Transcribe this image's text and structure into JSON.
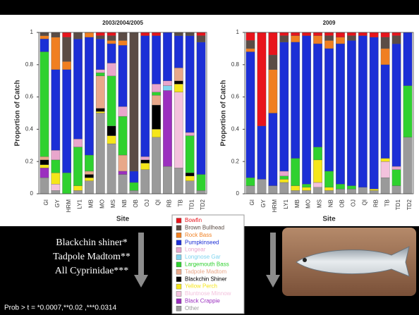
{
  "chart_data": [
    {
      "type": "stacked-bar",
      "title": "2003/2004/2005",
      "xlabel": "Site",
      "ylabel": "Proportion of Catch",
      "categories": [
        "GI",
        "GY",
        "HRM",
        "LY1",
        "MB",
        "MO",
        "MS",
        "NB",
        "OB",
        "OJ",
        "QI",
        "RB",
        "TB",
        "TD1",
        "TD2"
      ],
      "ylim": [
        0,
        1
      ],
      "yticks": [
        0,
        0.2,
        0.4,
        0.6,
        0.8,
        1
      ],
      "series": [
        {
          "name": "Bowfin",
          "color": "#e8141c",
          "values": [
            0,
            0,
            0.03,
            0,
            0,
            0.02,
            0.02,
            0,
            0,
            0.02,
            0.02,
            0,
            0,
            0,
            0.02
          ]
        },
        {
          "name": "Brown Bullhead",
          "color": "#5b4c45",
          "values": [
            0.02,
            0.03,
            0.15,
            0.04,
            0,
            0.02,
            0.03,
            0.05,
            0.86,
            0,
            0,
            0,
            0.02,
            0.02,
            0.04
          ]
        },
        {
          "name": "Rock Bass",
          "color": "#f07f21",
          "values": [
            0.02,
            0.2,
            0.05,
            0,
            0.03,
            0,
            0.02,
            0.03,
            0,
            0,
            0,
            0,
            0,
            0,
            0
          ]
        },
        {
          "name": "Pumpkinseed",
          "color": "#1c2fd6",
          "values": [
            0.08,
            0.5,
            0.64,
            0.62,
            0.73,
            0.19,
            0.12,
            0.38,
            0.07,
            0.75,
            0.3,
            0.3,
            0.2,
            0.6,
            0.82
          ]
        },
        {
          "name": "Longear",
          "color": "#e9a6cc",
          "values": [
            0,
            0.06,
            0,
            0.05,
            0,
            0.02,
            0.08,
            0.06,
            0,
            0.02,
            0.05,
            0.03,
            0,
            0.02,
            0
          ]
        },
        {
          "name": "Longnose Gar",
          "color": "#7fd4ef",
          "values": [
            0,
            0,
            0,
            0,
            0,
            0,
            0,
            0,
            0,
            0,
            0,
            0.03,
            0,
            0,
            0
          ]
        },
        {
          "name": "Largemouth Bass",
          "color": "#2fd12f",
          "values": [
            0.65,
            0.08,
            0.13,
            0.24,
            0.1,
            0.02,
            0.31,
            0.24,
            0.05,
            0,
            0.02,
            0,
            0,
            0.23,
            0.1
          ]
        },
        {
          "name": "Tadpole Madtom",
          "color": "#e8a88a",
          "values": [
            0.02,
            0,
            0,
            0,
            0.02,
            0.2,
            0,
            0.1,
            0,
            0,
            0.06,
            0,
            0.08,
            0,
            0
          ]
        },
        {
          "name": "Blackchin Shiner",
          "color": "#000000",
          "values": [
            0.03,
            0,
            0,
            0,
            0.02,
            0.02,
            0.06,
            0,
            0,
            0.02,
            0.15,
            0,
            0.02,
            0.02,
            0
          ]
        },
        {
          "name": "Yellow Perch",
          "color": "#f5e61a",
          "values": [
            0.02,
            0.07,
            0,
            0.03,
            0.02,
            0.01,
            0.05,
            0,
            0,
            0.04,
            0.05,
            0,
            0.05,
            0.03,
            0
          ]
        },
        {
          "name": "Bluntnose Minnow",
          "color": "#f3c2dd",
          "values": [
            0,
            0.04,
            0,
            0,
            0,
            0,
            0,
            0,
            0,
            0,
            0,
            0,
            0.47,
            0,
            0
          ]
        },
        {
          "name": "Black Crappie",
          "color": "#9b2fbf",
          "values": [
            0.06,
            0,
            0,
            0,
            0,
            0,
            0,
            0.02,
            0,
            0,
            0,
            0.47,
            0,
            0,
            0
          ]
        },
        {
          "name": "Other",
          "color": "#9a9a9a",
          "values": [
            0.1,
            0.02,
            0,
            0.02,
            0.08,
            0.5,
            0.31,
            0.12,
            0.02,
            0.15,
            0.35,
            0.17,
            0.16,
            0.08,
            0.02
          ]
        }
      ]
    },
    {
      "type": "stacked-bar",
      "title": "2009",
      "xlabel": "Site",
      "ylabel": "Proportion of Catch",
      "categories": [
        "GI",
        "GY",
        "HRM",
        "LY1",
        "MB",
        "MO",
        "MS",
        "NB",
        "OB",
        "OJ",
        "QI",
        "RB",
        "TB",
        "TD1",
        "TD2"
      ],
      "ylim": [
        0,
        1
      ],
      "yticks": [
        0,
        0.2,
        0.4,
        0.6,
        0.8,
        1
      ],
      "series": [
        {
          "name": "Bowfin",
          "color": "#e8141c",
          "values": [
            0.05,
            0.58,
            0.14,
            0.02,
            0.02,
            0.02,
            0.02,
            0.02,
            0.03,
            0.02,
            0.02,
            0.03,
            0.03,
            0.02,
            0
          ]
        },
        {
          "name": "Brown Bullhead",
          "color": "#5b4c45",
          "values": [
            0.05,
            0,
            0.09,
            0.04,
            0,
            0,
            0,
            0.03,
            0,
            0.03,
            0,
            0,
            0.07,
            0.05,
            0
          ]
        },
        {
          "name": "Rock Bass",
          "color": "#f07f21",
          "values": [
            0.02,
            0,
            0.27,
            0,
            0.04,
            0,
            0.05,
            0.05,
            0.04,
            0,
            0,
            0,
            0.1,
            0,
            0
          ]
        },
        {
          "name": "Pumpkinseed",
          "color": "#1c2fd6",
          "values": [
            0.78,
            0.33,
            0.45,
            0.8,
            0.72,
            0.92,
            0.64,
            0.76,
            0.87,
            0.9,
            0.94,
            0.94,
            0.58,
            0.76,
            0.33
          ]
        },
        {
          "name": "Longear",
          "color": "#e9a6cc",
          "values": [
            0,
            0,
            0,
            0.03,
            0,
            0,
            0,
            0,
            0,
            0,
            0,
            0,
            0,
            0.02,
            0
          ]
        },
        {
          "name": "Longnose Gar",
          "color": "#7fd4ef",
          "values": [
            0,
            0,
            0,
            0,
            0,
            0,
            0,
            0,
            0,
            0,
            0,
            0,
            0,
            0,
            0
          ]
        },
        {
          "name": "Largemouth Bass",
          "color": "#2fd12f",
          "values": [
            0.05,
            0,
            0,
            0.02,
            0.17,
            0.02,
            0.08,
            0.1,
            0.03,
            0.02,
            0,
            0,
            0,
            0.1,
            0.32
          ]
        },
        {
          "name": "Tadpole Madtom",
          "color": "#e8a88a",
          "values": [
            0,
            0,
            0,
            0,
            0,
            0,
            0,
            0,
            0,
            0,
            0,
            0,
            0,
            0,
            0
          ]
        },
        {
          "name": "Blackchin Shiner",
          "color": "#000000",
          "values": [
            0,
            0,
            0,
            0,
            0,
            0,
            0,
            0,
            0,
            0,
            0,
            0,
            0,
            0,
            0
          ]
        },
        {
          "name": "Yellow Perch",
          "color": "#f5e61a",
          "values": [
            0,
            0,
            0,
            0.02,
            0.03,
            0.02,
            0.14,
            0.02,
            0,
            0,
            0,
            0.01,
            0.02,
            0,
            0
          ]
        },
        {
          "name": "Bluntnose Minnow",
          "color": "#f3c2dd",
          "values": [
            0,
            0,
            0,
            0,
            0,
            0,
            0.03,
            0,
            0,
            0,
            0,
            0,
            0.1,
            0,
            0
          ]
        },
        {
          "name": "Black Crappie",
          "color": "#9b2fbf",
          "values": [
            0,
            0,
            0,
            0,
            0,
            0,
            0,
            0,
            0,
            0,
            0,
            0,
            0,
            0,
            0
          ]
        },
        {
          "name": "Other",
          "color": "#9a9a9a",
          "values": [
            0.05,
            0.09,
            0.05,
            0.07,
            0.02,
            0.02,
            0.04,
            0.02,
            0.03,
            0.03,
            0.04,
            0.02,
            0.1,
            0.05,
            0.35
          ]
        }
      ]
    }
  ],
  "notes": [
    "Blackchin shiner*",
    "Tadpole Madtom**",
    "All Cyprinidae***"
  ],
  "footnote": "Prob > t = *0.0007,**0.02 ,***0.0314"
}
